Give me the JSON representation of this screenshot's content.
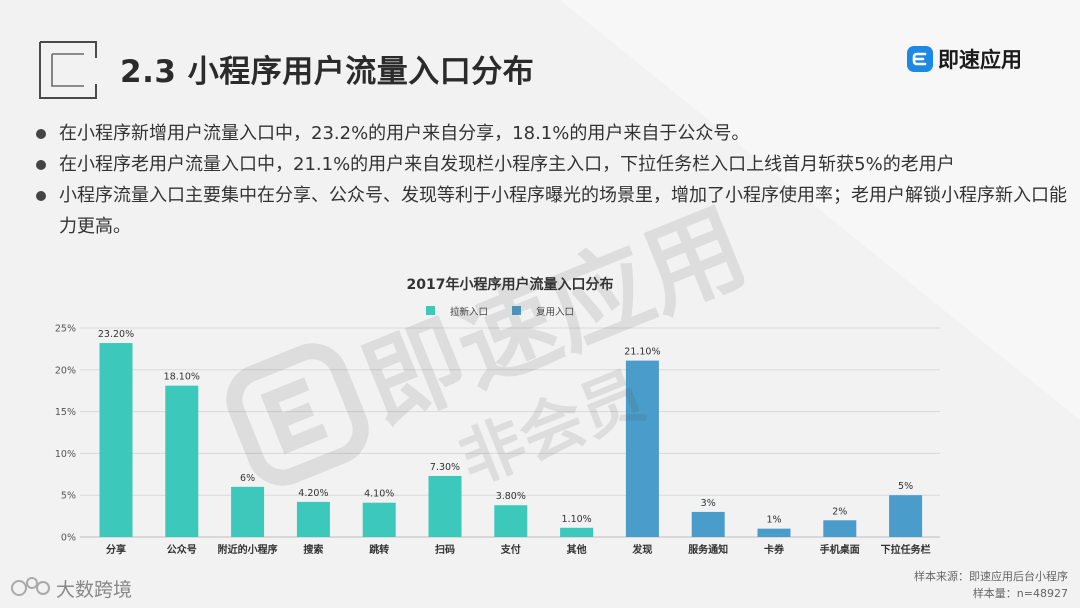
{
  "title": "2.3 小程序用户流量入口分布",
  "brand": {
    "name": "即速应用"
  },
  "bullets": [
    "在小程序新增用户流量入口中，23.2%的用户来自分享，18.1%的用户来自于公众号。",
    "在小程序老用户流量入口中，21.1%的用户来自发现栏小程序主入口，下拉任务栏入口上线首月斩获5%的老用户",
    "小程序流量入口主要集中在分享、公众号、发现等利于小程序曝光的场景里，增加了小程序使用率；老用户解锁小程序新入口能力更高。"
  ],
  "watermark": {
    "logo_text": "即速应用",
    "sub_text": "非会员"
  },
  "footer": {
    "logo_text": "大数跨境",
    "source_line": "样本来源：即速应用后台小程序",
    "sample_line": "样本量：n=48927"
  },
  "colors": {
    "new_users": "#3cc8bb",
    "returning_users": "#4a9ccb"
  },
  "chart_data": {
    "type": "bar",
    "title": "2017年小程序用户流量入口分布",
    "categories": [
      "分享",
      "公众号",
      "附近的小程序",
      "搜索",
      "跳转",
      "扫码",
      "支付",
      "其他",
      "发现",
      "服务通知",
      "卡券",
      "手机桌面",
      "下拉任务栏"
    ],
    "series": [
      {
        "name": "拉新入口",
        "color": "#3cc8bb",
        "values": [
          23.2,
          18.1,
          6,
          4.2,
          4.1,
          7.3,
          3.8,
          1.1,
          null,
          null,
          null,
          null,
          null
        ]
      },
      {
        "name": "复用入口",
        "color": "#4a9ccb",
        "values": [
          null,
          null,
          null,
          null,
          null,
          null,
          null,
          null,
          21.1,
          3,
          1,
          2,
          5
        ]
      }
    ],
    "data_labels": [
      "23.20%",
      "18.10%",
      "6%",
      "4.20%",
      "4.10%",
      "7.30%",
      "3.80%",
      "1.10%",
      "21.10%",
      "3%",
      "1%",
      "2%",
      "5%"
    ],
    "ylim": [
      0,
      25
    ],
    "yticks": [
      "0%",
      "5%",
      "10%",
      "15%",
      "20%",
      "25%"
    ],
    "grid": true,
    "legend": "top-center"
  }
}
